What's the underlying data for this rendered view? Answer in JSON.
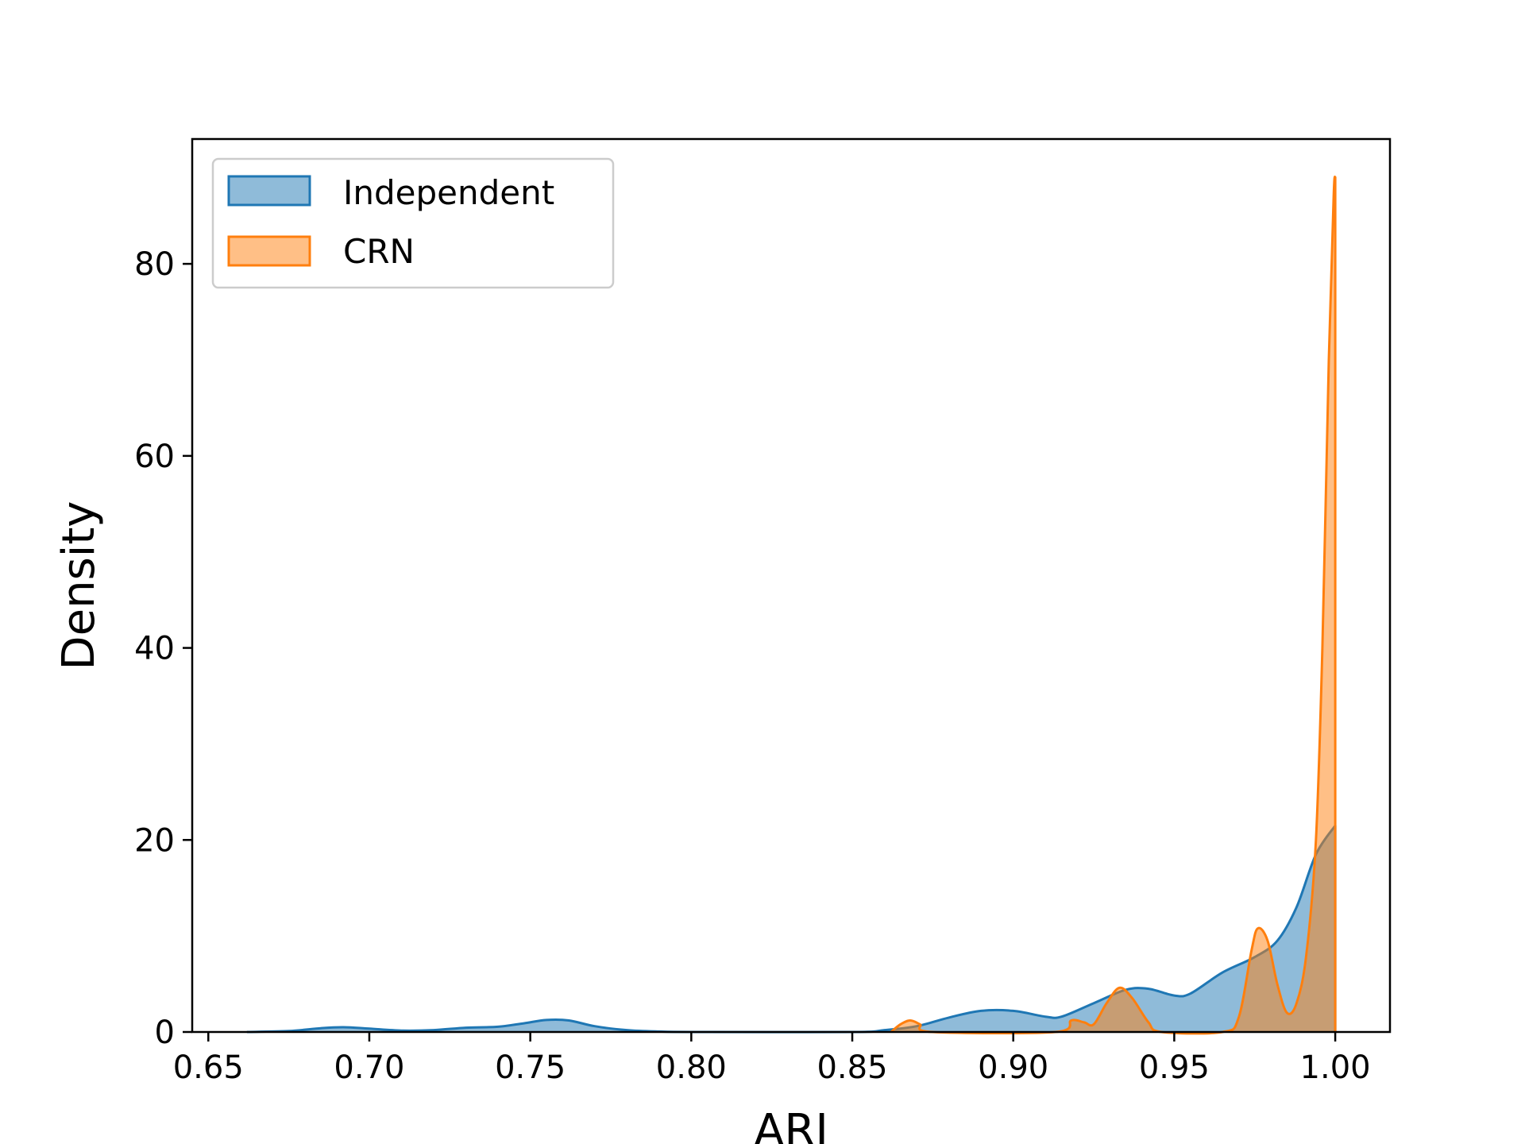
{
  "chart_data": {
    "type": "area",
    "title": "",
    "xlabel": "ARI",
    "ylabel": "Density",
    "xlim": [
      0.645,
      1.017
    ],
    "ylim": [
      0,
      93
    ],
    "xticks": [
      "0.65",
      "0.70",
      "0.75",
      "0.80",
      "0.85",
      "0.90",
      "0.95",
      "1.00"
    ],
    "yticks": [
      "0",
      "20",
      "40",
      "60",
      "80"
    ],
    "grid": false,
    "legend_position": "top-left",
    "series": [
      {
        "name": "Independent",
        "color": "#1f77b4",
        "fill_opacity": 0.5,
        "points": [
          [
            0.662,
            0
          ],
          [
            0.675,
            0.1
          ],
          [
            0.685,
            0.4
          ],
          [
            0.692,
            0.5
          ],
          [
            0.7,
            0.35
          ],
          [
            0.71,
            0.15
          ],
          [
            0.72,
            0.2
          ],
          [
            0.73,
            0.45
          ],
          [
            0.74,
            0.55
          ],
          [
            0.748,
            0.9
          ],
          [
            0.755,
            1.25
          ],
          [
            0.762,
            1.2
          ],
          [
            0.77,
            0.6
          ],
          [
            0.78,
            0.2
          ],
          [
            0.79,
            0.05
          ],
          [
            0.8,
            0
          ],
          [
            0.85,
            0
          ],
          [
            0.86,
            0.2
          ],
          [
            0.87,
            0.6
          ],
          [
            0.88,
            1.5
          ],
          [
            0.89,
            2.2
          ],
          [
            0.9,
            2.2
          ],
          [
            0.91,
            1.6
          ],
          [
            0.915,
            1.6
          ],
          [
            0.925,
            3.0
          ],
          [
            0.935,
            4.4
          ],
          [
            0.942,
            4.5
          ],
          [
            0.95,
            3.8
          ],
          [
            0.955,
            4.0
          ],
          [
            0.965,
            6.2
          ],
          [
            0.975,
            7.8
          ],
          [
            0.982,
            9.5
          ],
          [
            0.988,
            13.0
          ],
          [
            0.994,
            18.5
          ],
          [
            1.0,
            21.5
          ],
          [
            1.0,
            0
          ]
        ]
      },
      {
        "name": "CRN",
        "color": "#ff7f0e",
        "fill_opacity": 0.5,
        "points": [
          [
            0.862,
            0
          ],
          [
            0.865,
            0.8
          ],
          [
            0.868,
            1.2
          ],
          [
            0.871,
            0.8
          ],
          [
            0.875,
            0
          ],
          [
            0.913,
            0
          ],
          [
            0.918,
            1.2
          ],
          [
            0.922,
            1.0
          ],
          [
            0.925,
            0.8
          ],
          [
            0.929,
            3.0
          ],
          [
            0.933,
            4.6
          ],
          [
            0.937,
            3.5
          ],
          [
            0.942,
            1.0
          ],
          [
            0.946,
            0
          ],
          [
            0.965,
            0
          ],
          [
            0.97,
            1.5
          ],
          [
            0.974,
            8.5
          ],
          [
            0.976,
            10.8
          ],
          [
            0.979,
            9.5
          ],
          [
            0.982,
            5.0
          ],
          [
            0.985,
            2.0
          ],
          [
            0.988,
            3.0
          ],
          [
            0.991,
            8.0
          ],
          [
            0.994,
            20.0
          ],
          [
            0.996,
            40.0
          ],
          [
            0.998,
            70.0
          ],
          [
            0.9995,
            87.0
          ],
          [
            1.0,
            89.0
          ],
          [
            1.0,
            0
          ]
        ]
      }
    ]
  }
}
